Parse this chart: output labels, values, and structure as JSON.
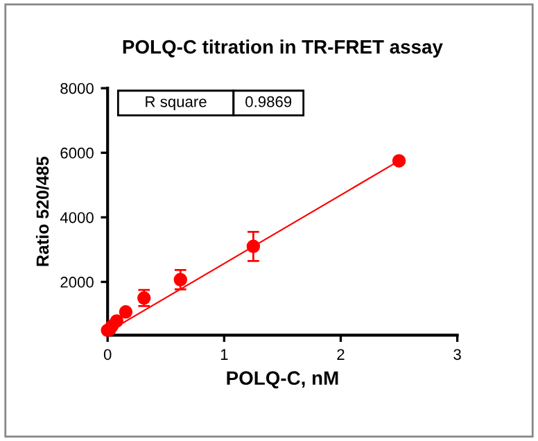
{
  "chart_data": {
    "type": "scatter",
    "title": "POLQ-C titration in TR-FRET assay",
    "xlabel": "POLQ-C, nM",
    "ylabel": "Ratio 520/485",
    "annotations": [
      "R square",
      "0.9869"
    ],
    "series": [
      {
        "color": "#ff0000",
        "marker": "circle",
        "x": [
          0,
          0.0195,
          0.039,
          0.078,
          0.156,
          0.3125,
          0.625,
          1.25,
          2.5
        ],
        "values": [
          500,
          540,
          640,
          790,
          1070,
          1500,
          2070,
          3100,
          5750
        ],
        "errors": [
          null,
          null,
          null,
          null,
          null,
          250,
          300,
          450,
          null
        ]
      },
      {
        "type": "line",
        "color": "#ff0000",
        "marker": "none",
        "x": [
          0,
          2.5
        ],
        "values": [
          450,
          5750
        ]
      }
    ],
    "xlim": [
      0,
      3
    ],
    "ylim": [
      350,
      8000
    ],
    "xticks": [
      0,
      1,
      2,
      3
    ],
    "yticks": [
      2000,
      4000,
      6000,
      8000
    ],
    "grid": false,
    "legend": false
  }
}
